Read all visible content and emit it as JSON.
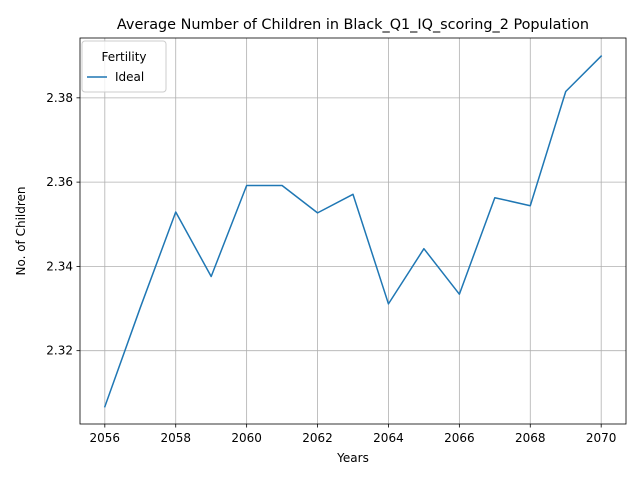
{
  "chart_data": {
    "type": "line",
    "title": "Average Number of Children in Black_Q1_IQ_scoring_2 Population",
    "xlabel": "Years",
    "ylabel": "No. of Children",
    "xlim": [
      2055.3,
      2070.7
    ],
    "ylim": [
      2.3026,
      2.3942
    ],
    "x_ticks": [
      2056,
      2058,
      2060,
      2062,
      2064,
      2066,
      2068,
      2070
    ],
    "y_ticks": [
      2.32,
      2.34,
      2.36,
      2.38
    ],
    "x_tick_labels": [
      "2056",
      "2058",
      "2060",
      "2062",
      "2064",
      "2066",
      "2068",
      "2070"
    ],
    "y_tick_labels": [
      "2.32",
      "2.34",
      "2.36",
      "2.38"
    ],
    "grid": true,
    "legend": {
      "title": "Fertility",
      "placement": "top-left"
    },
    "x": [
      2056,
      2057,
      2058,
      2059,
      2060,
      2061,
      2062,
      2063,
      2064,
      2065,
      2066,
      2067,
      2068,
      2069,
      2070
    ],
    "series": [
      {
        "name": "Ideal",
        "color": "#1f77b4",
        "values": [
          2.3067,
          2.3302,
          2.3529,
          2.3376,
          2.3592,
          2.3592,
          2.3527,
          2.3571,
          2.3311,
          2.3442,
          2.3334,
          2.3563,
          2.3544,
          2.3815,
          2.3899
        ]
      }
    ]
  }
}
